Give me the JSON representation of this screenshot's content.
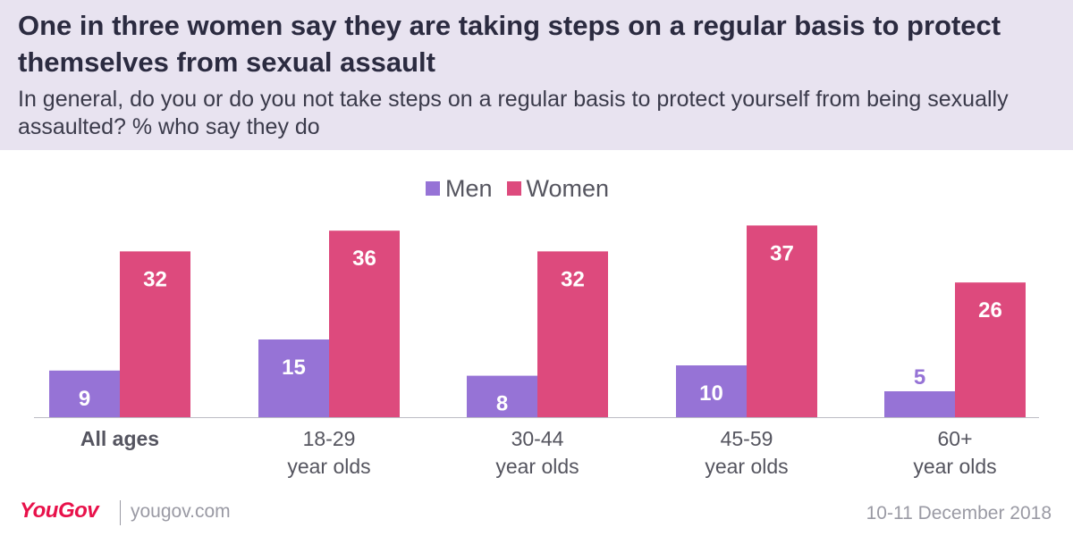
{
  "header": {
    "title": "One in three women say they are taking steps on a regular basis to protect themselves from sexual assault",
    "subtitle": "In general, do you or do you not take steps on a regular basis to protect yourself from being sexually assaulted? % who say they do"
  },
  "footer": {
    "brand": "YouGov",
    "url": "yougov.com",
    "date": "10-11 December 2018"
  },
  "colors": {
    "men": "#9673d6",
    "women": "#dd4a7d",
    "header_bg": "#e8e3f0"
  },
  "chart_data": {
    "type": "bar",
    "categories": [
      [
        "All ages"
      ],
      [
        "18-29",
        "year olds"
      ],
      [
        "30-44",
        "year olds"
      ],
      [
        "45-59",
        "year olds"
      ],
      [
        "60+",
        "year olds"
      ]
    ],
    "series": [
      {
        "name": "Men",
        "values": [
          9,
          15,
          8,
          10,
          5
        ]
      },
      {
        "name": "Women",
        "values": [
          32,
          36,
          32,
          37,
          26
        ]
      }
    ],
    "ylim": [
      0,
      40
    ],
    "legend": "top-center",
    "grid": false
  }
}
